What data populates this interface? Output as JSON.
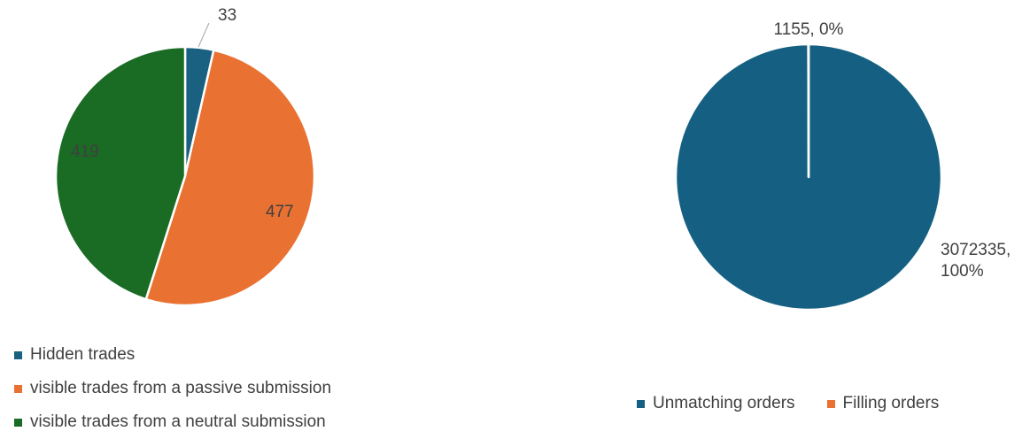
{
  "chart_data": [
    {
      "type": "pie",
      "categories": [
        "Hidden trades",
        "visible trades from a passive submission",
        "visible trades from a neutral submission"
      ],
      "values": [
        33,
        477,
        419
      ],
      "data_labels": [
        "33",
        "477",
        "419"
      ],
      "colors": [
        "#1a6081",
        "#e97132",
        "#1a6b24"
      ],
      "legend_position": "bottom-left"
    },
    {
      "type": "pie",
      "categories": [
        "Unmatching orders",
        "Filling orders"
      ],
      "values": [
        3072335,
        1155
      ],
      "data_labels": [
        "3072335, 100%",
        "1155, 0%"
      ],
      "colors": [
        "#156082",
        "#e97132"
      ],
      "legend_position": "bottom"
    }
  ]
}
